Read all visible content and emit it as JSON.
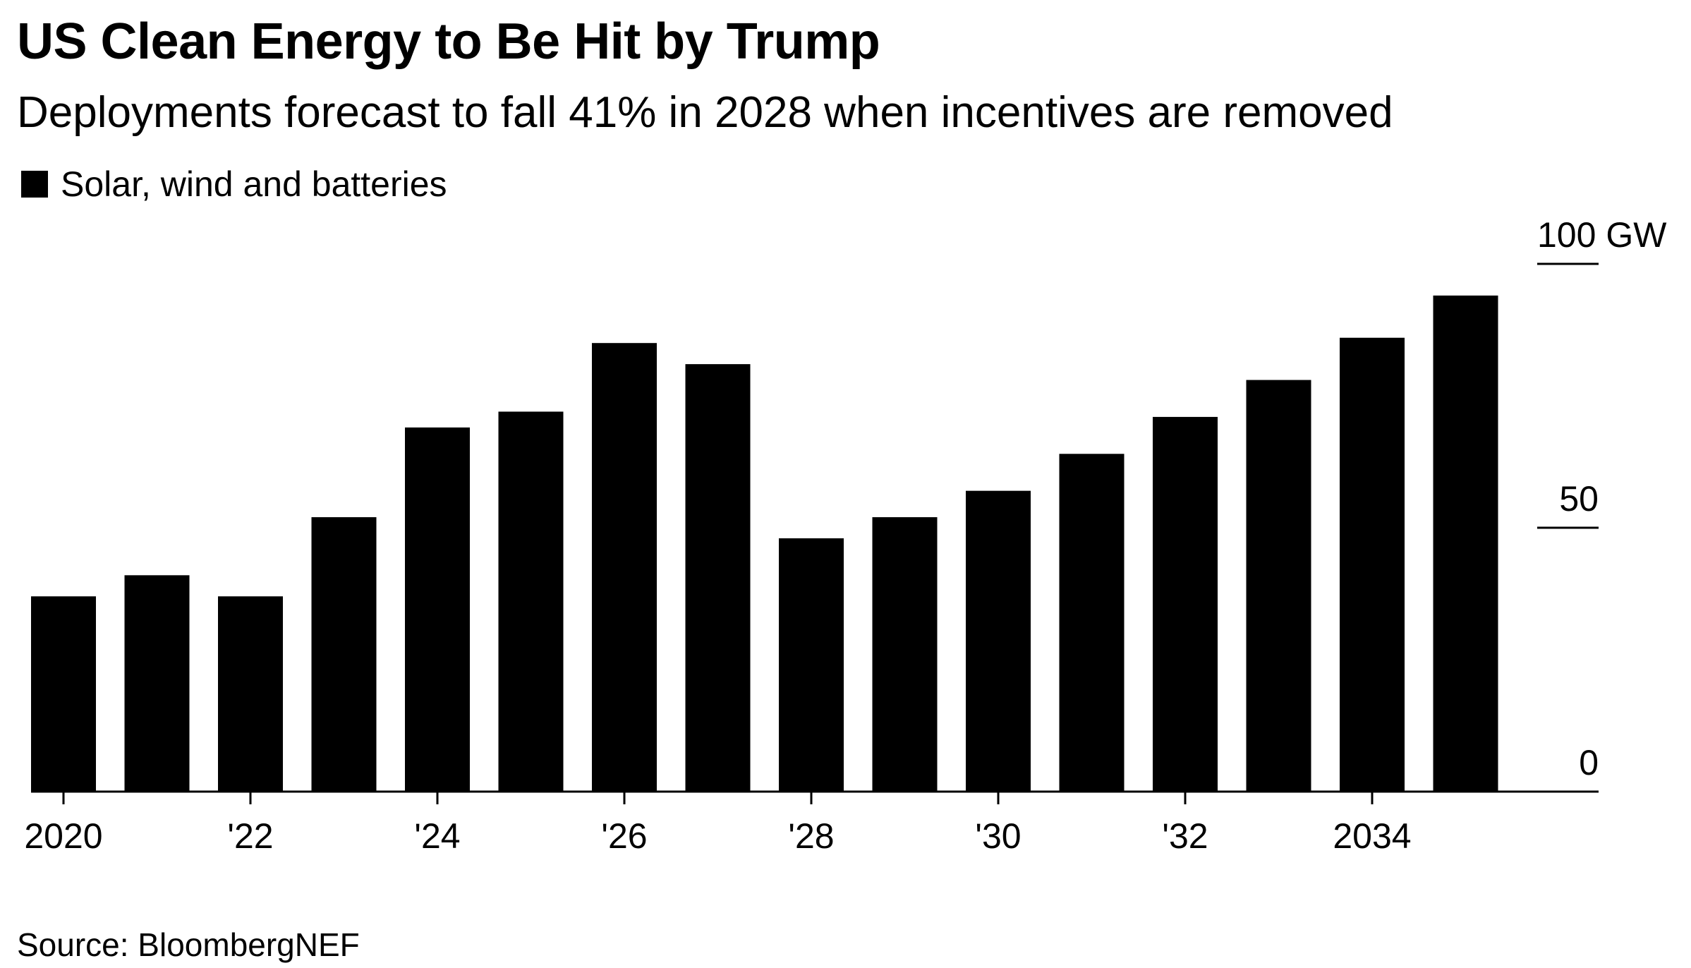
{
  "chart_data": {
    "type": "bar",
    "title": "US Clean Energy to Be Hit by Trump",
    "subtitle": "Deployments forecast to fall 41% in 2028 when incentives are removed",
    "source": "Source: BloombergNEF",
    "legend_position": "top-left",
    "grid": false,
    "series": [
      {
        "name": "Solar, wind and batteries",
        "color": "#000000",
        "values": [
          37,
          41,
          37,
          52,
          69,
          72,
          85,
          81,
          48,
          52,
          57,
          64,
          71,
          78,
          86,
          94
        ]
      }
    ],
    "categories": [
      "2020",
      "2021",
      "2022",
      "2023",
      "2024",
      "2025",
      "2026",
      "2027",
      "2028",
      "2029",
      "2030",
      "2031",
      "2032",
      "2033",
      "2034",
      "2035"
    ],
    "x_ticks": [
      {
        "category": "2020",
        "label": "2020"
      },
      {
        "category": "2022",
        "label": "'22"
      },
      {
        "category": "2024",
        "label": "'24"
      },
      {
        "category": "2026",
        "label": "'26"
      },
      {
        "category": "2028",
        "label": "'28"
      },
      {
        "category": "2030",
        "label": "'30"
      },
      {
        "category": "2032",
        "label": "'32"
      },
      {
        "category": "2034",
        "label": "2034"
      }
    ],
    "y_axis": {
      "position": "right",
      "unit": "GW",
      "ylim": [
        0,
        100
      ],
      "ticks": [
        {
          "value": 100,
          "label": "100 GW"
        },
        {
          "value": 50,
          "label": "50"
        },
        {
          "value": 0,
          "label": "0"
        }
      ]
    }
  }
}
